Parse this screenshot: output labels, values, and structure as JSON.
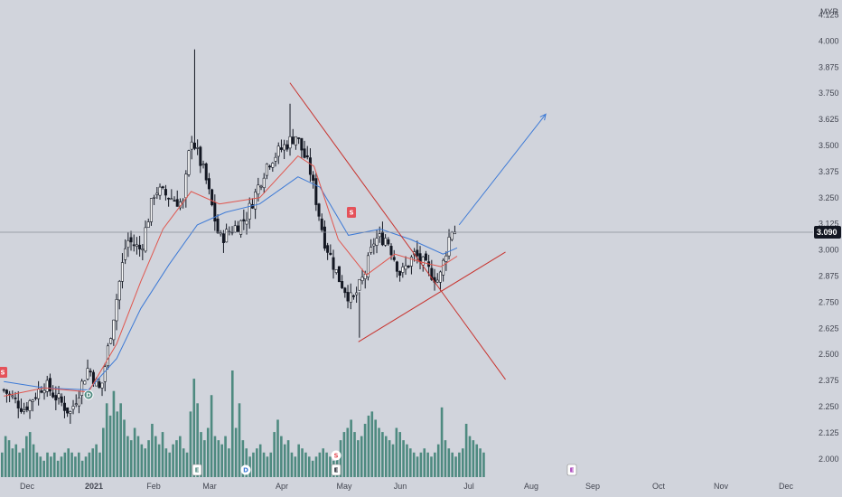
{
  "currency": "MYR",
  "last_price_label": "3.090",
  "colors": {
    "background": "#d1d4dc",
    "candle": "#131722",
    "volume": "#4e8a80",
    "ema_fast": "#e0574f",
    "ema_slow": "#3d7ad6",
    "trendline": "#c8332e",
    "projection": "#3d7ad6",
    "price_tag": "#131722",
    "dividend_marker": "#e4525a",
    "earnings_marker": "#ffffff",
    "future_earnings_marker": "#9c27b0"
  },
  "events": {
    "split_marker": "S",
    "earnings_marker": "E",
    "dividend_marker": "D",
    "split_marker_volume": "S"
  },
  "chart_data": {
    "type": "candlestick",
    "y_axis": {
      "ticks": [
        "4.125",
        "4.000",
        "3.875",
        "3.750",
        "3.625",
        "3.500",
        "3.375",
        "3.250",
        "3.125",
        "3.000",
        "2.875",
        "2.750",
        "2.625",
        "2.500",
        "2.375",
        "2.250",
        "2.125",
        "2.000"
      ],
      "ylim": [
        1.96,
        4.14
      ]
    },
    "x_axis": {
      "labels": [
        "Dec",
        "2021",
        "Feb",
        "Mar",
        "Apr",
        "May",
        "Jun",
        "Jul",
        "Aug",
        "Sep",
        "Oct",
        "Nov",
        "Dec"
      ],
      "bold_labels": [
        "2021"
      ]
    },
    "last_price": 3.09,
    "price_key_points": [
      {
        "date": "2020-11-25",
        "close": 2.33
      },
      {
        "date": "2020-12-05",
        "close": 2.24
      },
      {
        "date": "2020-12-15",
        "close": 2.36
      },
      {
        "date": "2020-12-28",
        "close": 2.22
      },
      {
        "date": "2021-01-06",
        "close": 2.44
      },
      {
        "date": "2021-01-12",
        "close": 2.32
      },
      {
        "date": "2021-01-25",
        "close": 3.05
      },
      {
        "date": "2021-02-01",
        "close": 3.0
      },
      {
        "date": "2021-02-08",
        "close": 3.29
      },
      {
        "date": "2021-02-22",
        "close": 3.22
      },
      {
        "date": "2021-02-26",
        "close": 3.55
      },
      {
        "date": "2021-03-05",
        "close": 3.35
      },
      {
        "date": "2021-03-12",
        "close": 3.05
      },
      {
        "date": "2021-03-25",
        "close": 3.15
      },
      {
        "date": "2021-04-05",
        "close": 3.42
      },
      {
        "date": "2021-04-19",
        "close": 3.55
      },
      {
        "date": "2021-04-26",
        "close": 3.38
      },
      {
        "date": "2021-05-03",
        "close": 3.05
      },
      {
        "date": "2021-05-10",
        "close": 2.87
      },
      {
        "date": "2021-05-17",
        "close": 2.75
      },
      {
        "date": "2021-05-23",
        "close": 2.88
      },
      {
        "date": "2021-05-28",
        "close": 3.05
      },
      {
        "date": "2021-06-03",
        "close": 3.06
      },
      {
        "date": "2021-06-10",
        "close": 2.88
      },
      {
        "date": "2021-06-17",
        "close": 2.98
      },
      {
        "date": "2021-06-24",
        "close": 2.9
      },
      {
        "date": "2021-06-29",
        "close": 2.85
      },
      {
        "date": "2021-07-05",
        "close": 3.1
      },
      {
        "date": "2021-07-08",
        "close": 3.09
      }
    ],
    "ema_fast_points": [
      {
        "date": "2020-11-25",
        "v": 2.3
      },
      {
        "date": "2020-12-15",
        "v": 2.34
      },
      {
        "date": "2021-01-06",
        "v": 2.32
      },
      {
        "date": "2021-01-20",
        "v": 2.55
      },
      {
        "date": "2021-02-01",
        "v": 2.85
      },
      {
        "date": "2021-02-12",
        "v": 3.1
      },
      {
        "date": "2021-02-26",
        "v": 3.28
      },
      {
        "date": "2021-03-12",
        "v": 3.22
      },
      {
        "date": "2021-04-01",
        "v": 3.25
      },
      {
        "date": "2021-04-20",
        "v": 3.45
      },
      {
        "date": "2021-04-28",
        "v": 3.4
      },
      {
        "date": "2021-05-10",
        "v": 3.05
      },
      {
        "date": "2021-05-24",
        "v": 2.88
      },
      {
        "date": "2021-06-07",
        "v": 2.98
      },
      {
        "date": "2021-06-21",
        "v": 2.94
      },
      {
        "date": "2021-06-30",
        "v": 2.92
      },
      {
        "date": "2021-07-08",
        "v": 2.97
      }
    ],
    "ema_slow_points": [
      {
        "date": "2020-11-25",
        "v": 2.37
      },
      {
        "date": "2020-12-15",
        "v": 2.34
      },
      {
        "date": "2021-01-06",
        "v": 2.33
      },
      {
        "date": "2021-01-20",
        "v": 2.48
      },
      {
        "date": "2021-02-01",
        "v": 2.72
      },
      {
        "date": "2021-02-15",
        "v": 2.93
      },
      {
        "date": "2021-03-01",
        "v": 3.12
      },
      {
        "date": "2021-03-15",
        "v": 3.18
      },
      {
        "date": "2021-04-01",
        "v": 3.22
      },
      {
        "date": "2021-04-20",
        "v": 3.35
      },
      {
        "date": "2021-05-01",
        "v": 3.3
      },
      {
        "date": "2021-05-15",
        "v": 3.07
      },
      {
        "date": "2021-05-31",
        "v": 3.1
      },
      {
        "date": "2021-06-15",
        "v": 3.05
      },
      {
        "date": "2021-07-01",
        "v": 2.98
      },
      {
        "date": "2021-07-08",
        "v": 3.01
      }
    ],
    "trendlines": [
      {
        "name": "upper-resistance",
        "from": {
          "date": "2021-04-16",
          "price": 3.8
        },
        "to": {
          "date": "2021-08-01",
          "price": 2.38
        }
      },
      {
        "name": "lower-support",
        "from": {
          "date": "2021-05-20",
          "price": 2.56
        },
        "to": {
          "date": "2021-08-01",
          "price": 2.99
        }
      },
      {
        "name": "projection",
        "from": {
          "date": "2021-07-09",
          "price": 3.12
        },
        "to": {
          "date": "2021-08-21",
          "price": 3.65
        }
      }
    ],
    "volume_relative": [
      0.3,
      0.5,
      0.45,
      0.35,
      0.4,
      0.3,
      0.35,
      0.5,
      0.55,
      0.4,
      0.3,
      0.25,
      0.2,
      0.3,
      0.25,
      0.3,
      0.2,
      0.25,
      0.3,
      0.35,
      0.3,
      0.25,
      0.3,
      0.2,
      0.25,
      0.3,
      0.35,
      0.4,
      0.3,
      0.6,
      0.9,
      0.75,
      1.05,
      0.8,
      0.9,
      0.7,
      0.5,
      0.45,
      0.6,
      0.5,
      0.4,
      0.35,
      0.45,
      0.65,
      0.5,
      0.4,
      0.55,
      0.35,
      0.3,
      0.4,
      0.45,
      0.5,
      0.35,
      0.3,
      0.8,
      1.2,
      0.9,
      0.55,
      0.45,
      0.6,
      1.0,
      0.5,
      0.45,
      0.4,
      0.5,
      0.35,
      1.3,
      0.6,
      0.9,
      0.45,
      0.35,
      0.25,
      0.3,
      0.35,
      0.4,
      0.3,
      0.25,
      0.3,
      0.55,
      0.7,
      0.5,
      0.4,
      0.45,
      0.3,
      0.25,
      0.4,
      0.35,
      0.3,
      0.25,
      0.2,
      0.25,
      0.3,
      0.35,
      0.3,
      0.25,
      0.2,
      0.3,
      0.45,
      0.55,
      0.6,
      0.7,
      0.55,
      0.45,
      0.5,
      0.65,
      0.75,
      0.8,
      0.7,
      0.6,
      0.55,
      0.5,
      0.45,
      0.4,
      0.6,
      0.55,
      0.45,
      0.4,
      0.35,
      0.3,
      0.25,
      0.3,
      0.35,
      0.3,
      0.25,
      0.3,
      0.4,
      0.85,
      0.45,
      0.35,
      0.3,
      0.25,
      0.3,
      0.35,
      0.65,
      0.5,
      0.45,
      0.4,
      0.35,
      0.3
    ]
  }
}
